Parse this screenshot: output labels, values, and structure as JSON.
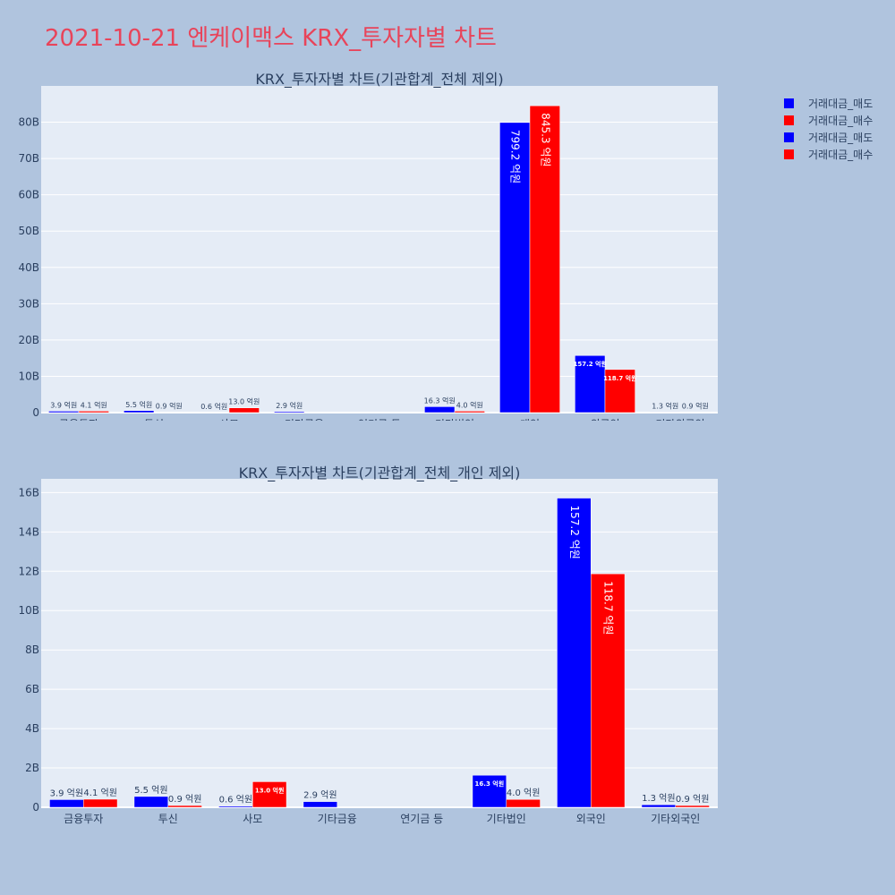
{
  "page_title": "2021-10-21 엔케이맥스 KRX_투자자별 차트",
  "legend": [
    {
      "label": "거래대금_매도",
      "color": "#0000ff"
    },
    {
      "label": "거래대금_매수",
      "color": "#ff0000"
    },
    {
      "label": "거래대금_매도",
      "color": "#0000ff"
    },
    {
      "label": "거래대금_매수",
      "color": "#ff0000"
    }
  ],
  "chart_data": [
    {
      "type": "bar",
      "title": "KRX_투자자별 차트(기관합계_전체 제외)",
      "categories": [
        "금융투자",
        "투신",
        "사모",
        "기타금융",
        "연기금 등",
        "기타법인",
        "개인",
        "외국인",
        "기타외국인"
      ],
      "ylim": [
        0,
        90000000000
      ],
      "yticks": [
        0,
        10000000000,
        20000000000,
        30000000000,
        40000000000,
        50000000000,
        60000000000,
        70000000000,
        80000000000
      ],
      "ytick_labels": [
        "0",
        "10B",
        "20B",
        "30B",
        "40B",
        "50B",
        "60B",
        "70B",
        "80B"
      ],
      "series": [
        {
          "name": "거래대금_매도",
          "color": "#0000ff",
          "values": [
            390000000,
            550000000,
            60000000,
            290000000,
            0,
            1630000000,
            79920000000,
            15720000000,
            130000000
          ],
          "labels": [
            "3.9 억원",
            "5.5 억원",
            "0.6 억원",
            "2.9 억원",
            "",
            "16.3 억원",
            "799.2 억원",
            "157.2 억원",
            "1.3 억원"
          ]
        },
        {
          "name": "거래대금_매수",
          "color": "#ff0000",
          "values": [
            410000000,
            90000000,
            1300000000,
            0,
            0,
            400000000,
            84530000000,
            11870000000,
            90000000
          ],
          "labels": [
            "4.1 억원",
            "0.9 억원",
            "13.0 억원",
            "",
            "",
            "4.0 억원",
            "845.3 억원",
            "118.7 억원",
            "0.9 억원"
          ]
        }
      ]
    },
    {
      "type": "bar",
      "title": "KRX_투자자별 차트(기관합계_전체_개인 제외)",
      "categories": [
        "금융투자",
        "투신",
        "사모",
        "기타금융",
        "연기금 등",
        "기타법인",
        "외국인",
        "기타외국인"
      ],
      "ylim": [
        0,
        16700000000
      ],
      "yticks": [
        0,
        2000000000,
        4000000000,
        6000000000,
        8000000000,
        10000000000,
        12000000000,
        14000000000,
        16000000000
      ],
      "ytick_labels": [
        "0",
        "2B",
        "4B",
        "6B",
        "8B",
        "10B",
        "12B",
        "14B",
        "16B"
      ],
      "series": [
        {
          "name": "거래대금_매도",
          "color": "#0000ff",
          "values": [
            390000000,
            550000000,
            60000000,
            290000000,
            0,
            1630000000,
            15720000000,
            130000000
          ],
          "labels": [
            "3.9 억원",
            "5.5 억원",
            "0.6 억원",
            "2.9 억원",
            "",
            "16.3 억원",
            "157.2 억원",
            "1.3 억원"
          ]
        },
        {
          "name": "거래대금_매수",
          "color": "#ff0000",
          "values": [
            410000000,
            90000000,
            1300000000,
            0,
            0,
            400000000,
            11870000000,
            90000000
          ],
          "labels": [
            "4.1 억원",
            "0.9 억원",
            "13.0 억원",
            "",
            "",
            "4.0 억원",
            "118.7 억원",
            "0.9 억원"
          ]
        }
      ]
    }
  ]
}
